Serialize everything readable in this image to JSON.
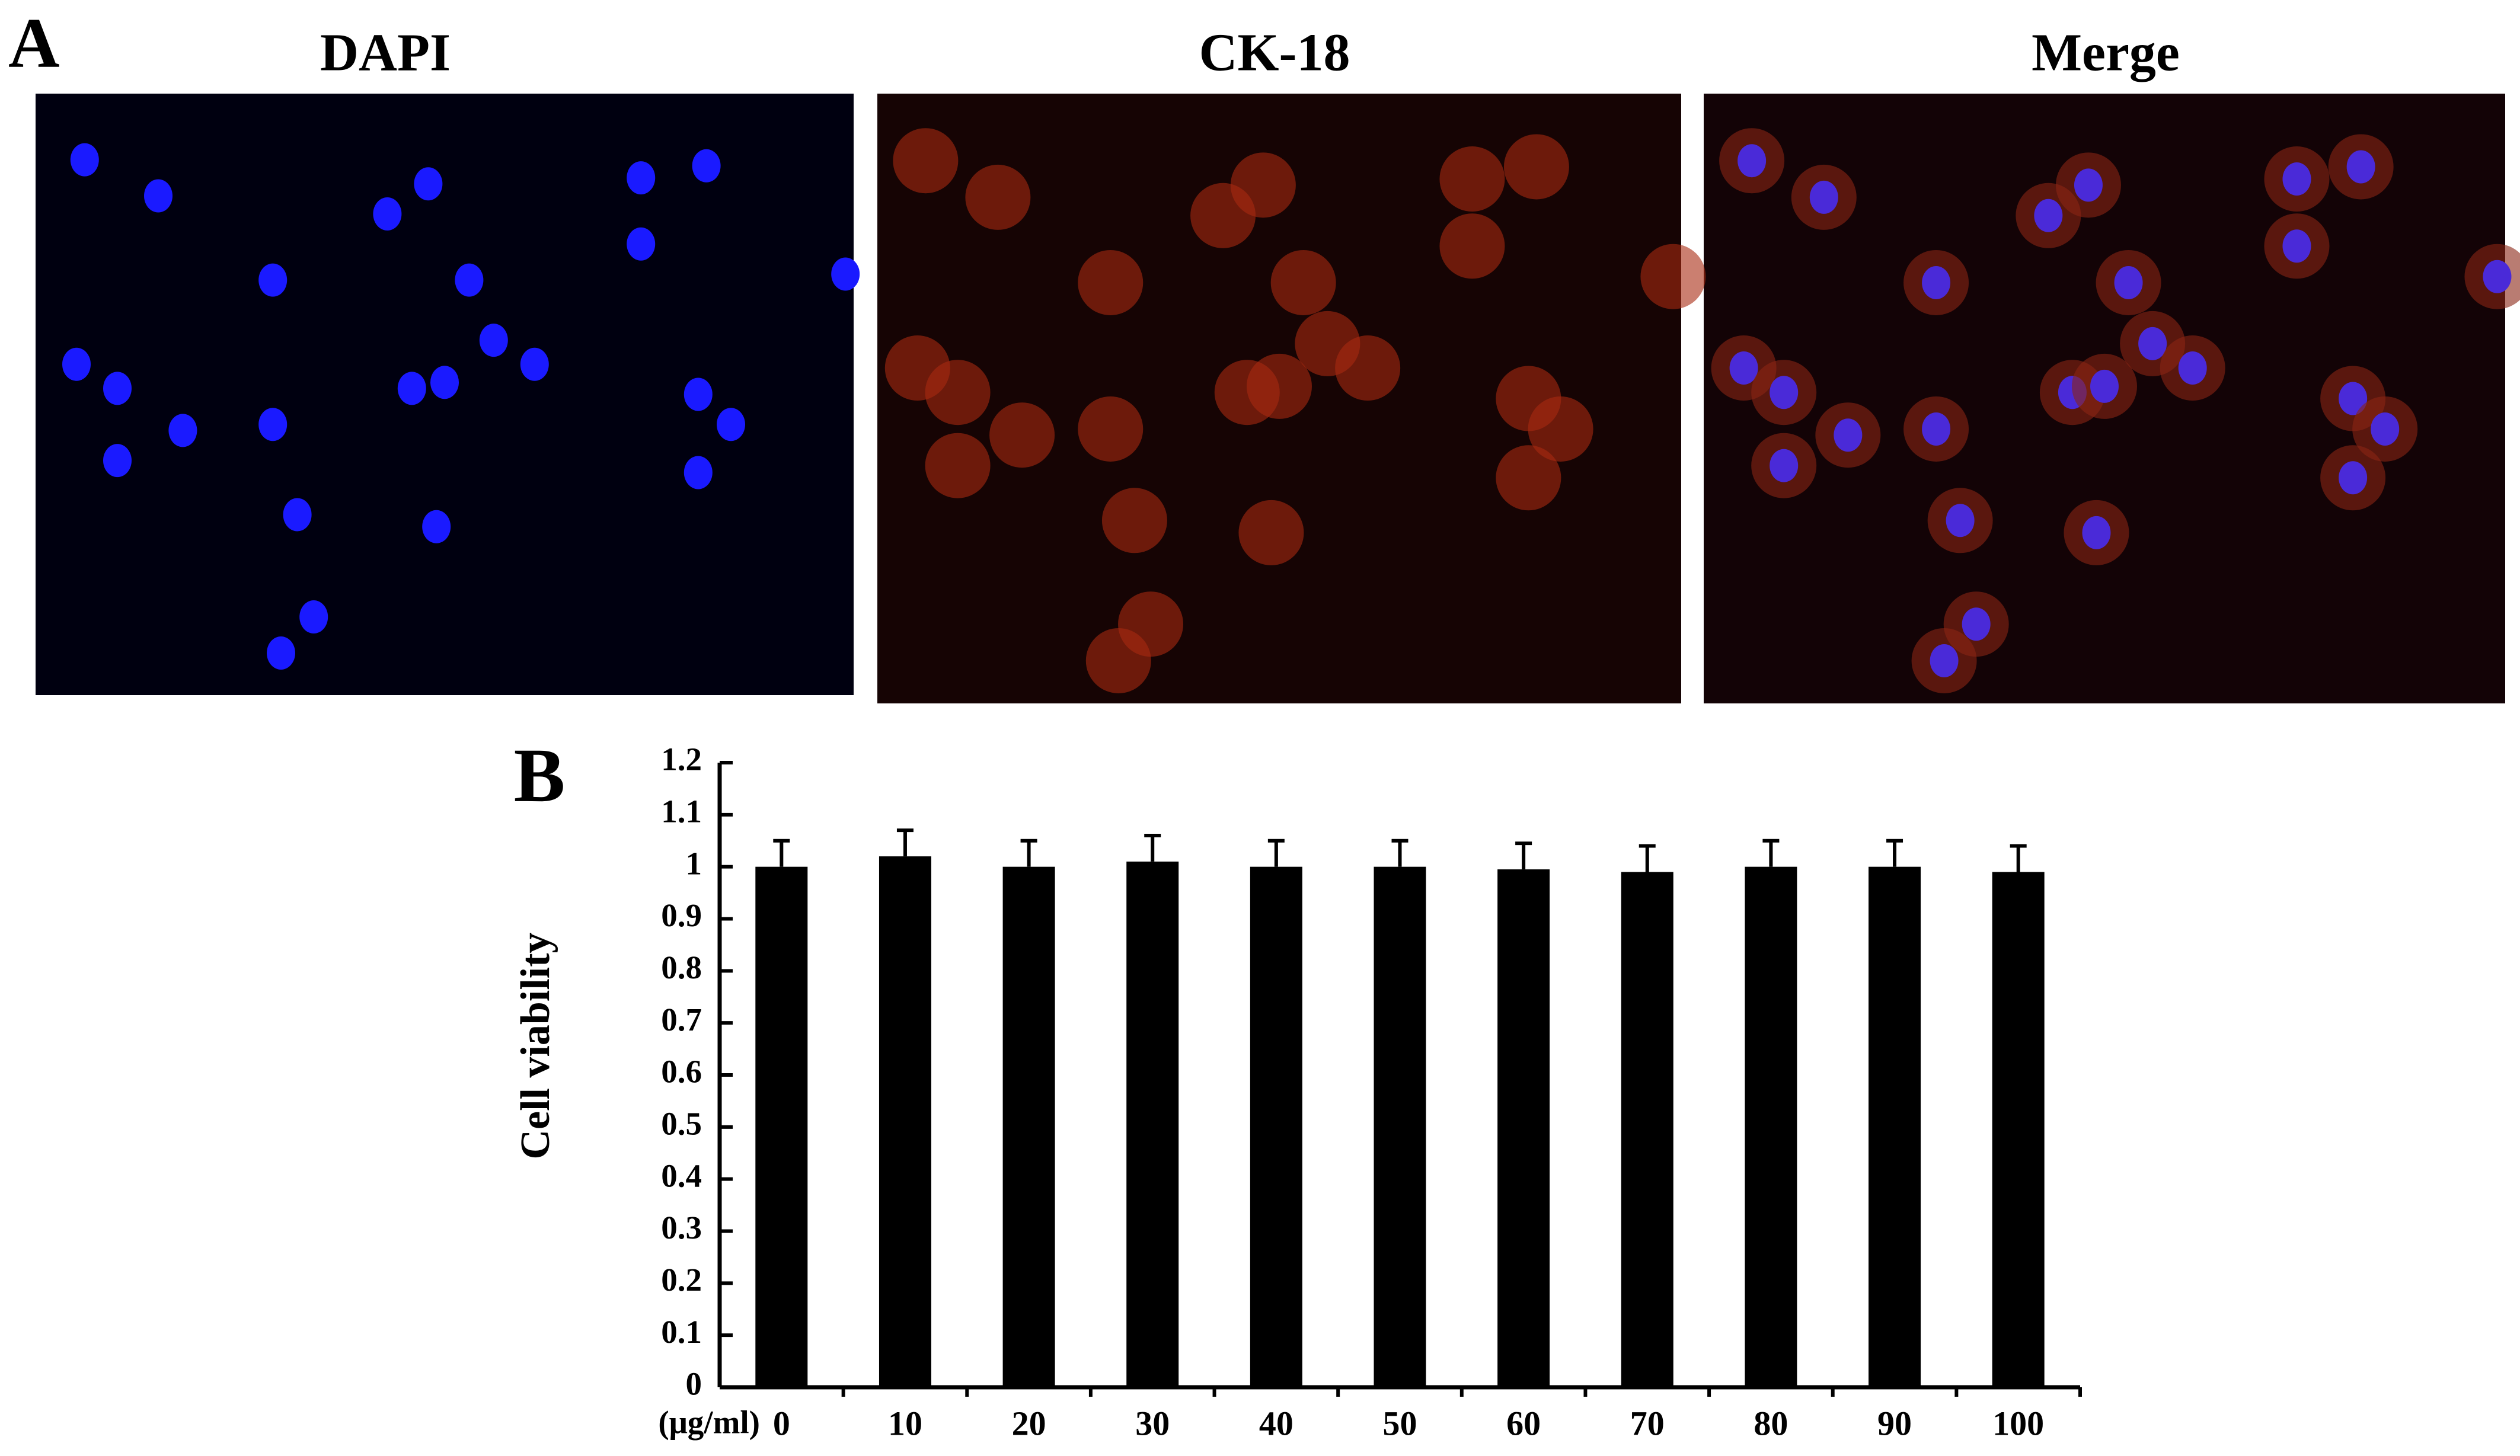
{
  "panel_a": {
    "label": "A",
    "titles": [
      "DAPI",
      "CK-18",
      "Merge"
    ]
  },
  "panel_b_label": "B",
  "chart_data": {
    "type": "bar",
    "ylabel": "Cell viability",
    "xunit": "(μg/ml)",
    "categories": [
      "0",
      "10",
      "20",
      "30",
      "40",
      "50",
      "60",
      "70",
      "80",
      "90",
      "100"
    ],
    "values": [
      1.0,
      1.02,
      1.0,
      1.01,
      1.0,
      1.0,
      0.995,
      0.99,
      1.0,
      1.0,
      0.99
    ],
    "errors": [
      0.05,
      0.05,
      0.05,
      0.05,
      0.05,
      0.05,
      0.05,
      0.05,
      0.05,
      0.05,
      0.05
    ],
    "color": "#000000",
    "ylim": [
      0,
      1.2
    ],
    "yticks": [
      0,
      0.1,
      0.2,
      0.3,
      0.4,
      0.5,
      0.6,
      0.7,
      0.8,
      0.9,
      1,
      1.1,
      1.2
    ]
  }
}
